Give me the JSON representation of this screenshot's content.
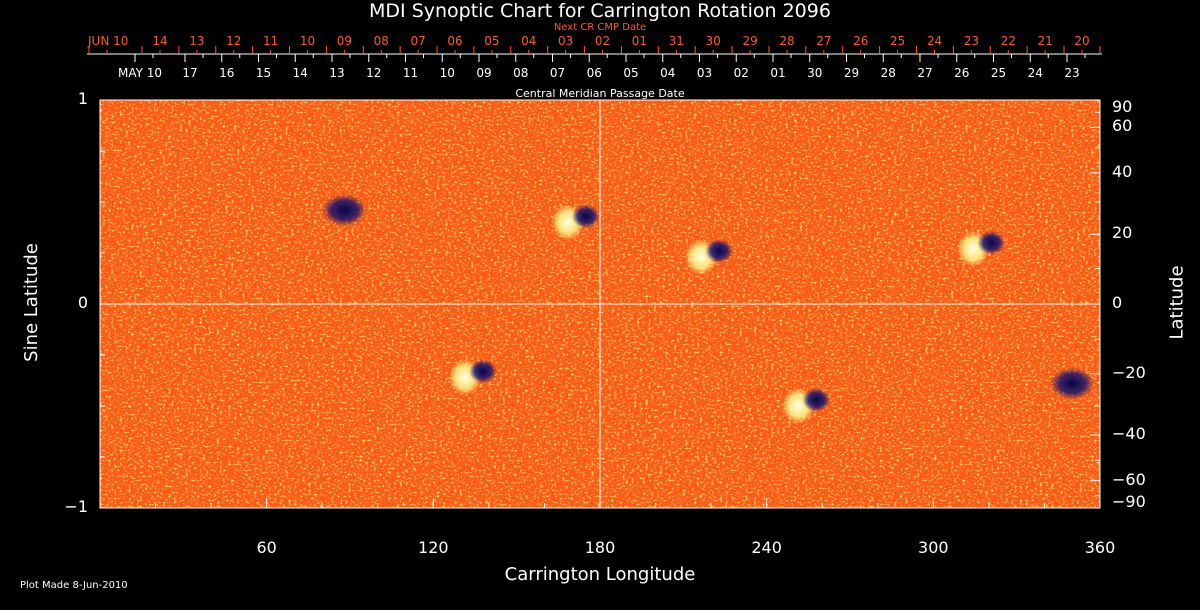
{
  "chart_data": {
    "type": "heatmap",
    "title": "MDI Synoptic Chart for Carrington Rotation 2096",
    "xlabel": "Carrington Longitude",
    "ylabel": "Sine Latitude",
    "ylabel_right": "Latitude",
    "xlim": [
      0,
      360
    ],
    "ylim": [
      -1,
      1
    ],
    "x_ticks": [
      "60",
      "120",
      "180",
      "240",
      "300",
      "360"
    ],
    "y_ticks": [
      "1",
      "0",
      "−1"
    ],
    "right_ticks": [
      "90",
      "60",
      "40",
      "20",
      "0",
      "−20",
      "−40",
      "−60",
      "−90"
    ],
    "right_tick_values": [
      90,
      60,
      40,
      20,
      0,
      -20,
      -40,
      -60,
      -90
    ],
    "top_axis_label": "Next CR CMP Date",
    "top_dates": [
      "JUN 10",
      "14",
      "13",
      "12",
      "11",
      "10",
      "09",
      "08",
      "07",
      "06",
      "05",
      "04",
      "03",
      "02",
      "01",
      "31",
      "30",
      "29",
      "28",
      "27",
      "26",
      "25",
      "24",
      "23",
      "22",
      "21",
      "20"
    ],
    "cmp_axis_label": "Central Meridian Passage Date",
    "cmp_dates": [
      "MAY 10",
      "17",
      "16",
      "15",
      "14",
      "13",
      "12",
      "11",
      "10",
      "09",
      "08",
      "07",
      "06",
      "05",
      "04",
      "03",
      "02",
      "01",
      "30",
      "29",
      "28",
      "27",
      "26",
      "25",
      "24",
      "23"
    ],
    "footnote": "Plot Made  8-Jun-2010",
    "active_regions": [
      {
        "lon": 88,
        "sinlat": 0.45,
        "polarity": "neg"
      },
      {
        "lon": 172,
        "sinlat": 0.42,
        "polarity": "mixed"
      },
      {
        "lon": 220,
        "sinlat": 0.25,
        "polarity": "mixed"
      },
      {
        "lon": 318,
        "sinlat": 0.29,
        "polarity": "mixed"
      },
      {
        "lon": 135,
        "sinlat": -0.34,
        "polarity": "mixed"
      },
      {
        "lon": 255,
        "sinlat": -0.48,
        "polarity": "mixed"
      },
      {
        "lon": 350,
        "sinlat": -0.4,
        "polarity": "neg"
      }
    ],
    "colors": {
      "background": "#ff5a10",
      "positive": "#ffffc0",
      "negative": "#0a0a60"
    }
  }
}
